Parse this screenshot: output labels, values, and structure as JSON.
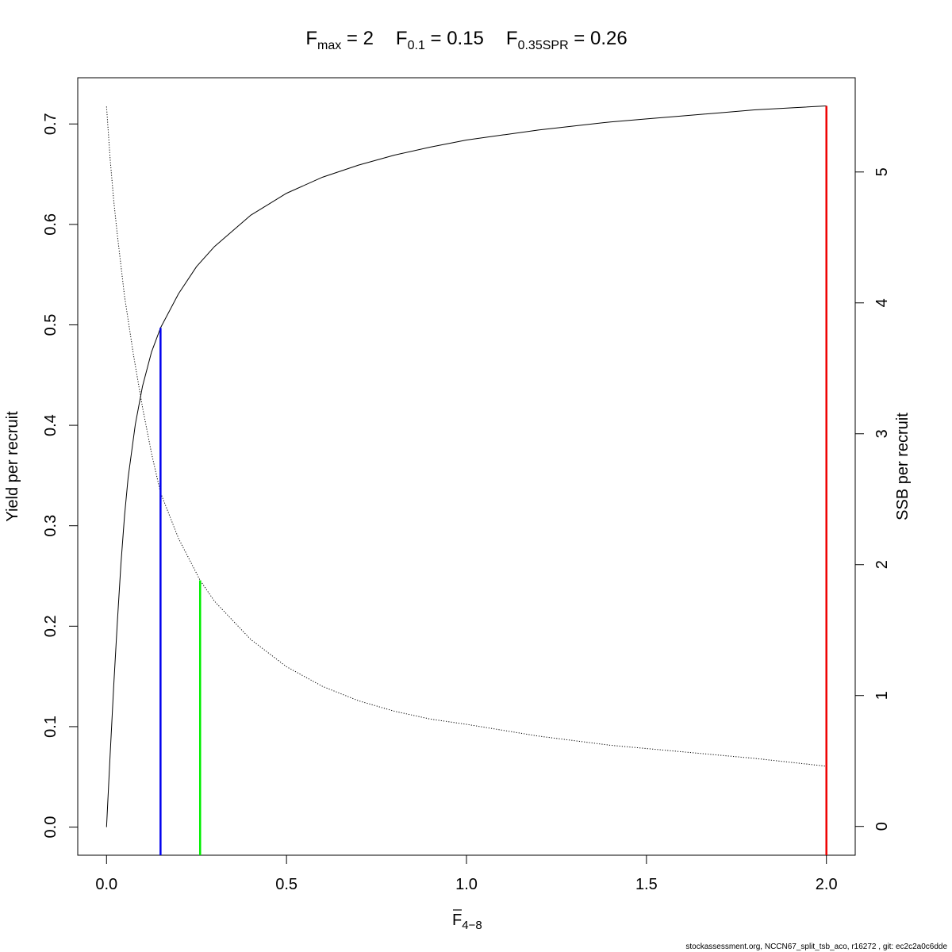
{
  "chart_data": {
    "type": "line",
    "title": {
      "fmax_label": "F",
      "fmax_sub": "max",
      "fmax_value": " = 2",
      "f01_label": "F",
      "f01_sub": "0.1",
      "f01_value": " = 0.15",
      "f035_label": "F",
      "f035_sub": "0.35SPR",
      "f035_value": " = 0.26"
    },
    "xlabel": {
      "text": "F",
      "sub": "4−8",
      "overbar": true
    },
    "ylabel_left": "Yield per recruit",
    "ylabel_right": "SSB per recruit",
    "xlim": [
      -0.08,
      2.08
    ],
    "ylim_left": [
      -0.028,
      0.746
    ],
    "ylim_right": [
      -0.22,
      5.72
    ],
    "x_ticks": [
      0.0,
      0.5,
      1.0,
      1.5,
      2.0
    ],
    "x_tick_labels": [
      "0.0",
      "0.5",
      "1.0",
      "1.5",
      "2.0"
    ],
    "y_left_ticks": [
      0.0,
      0.1,
      0.2,
      0.3,
      0.4,
      0.5,
      0.6,
      0.7
    ],
    "y_left_tick_labels": [
      "0.0",
      "0.1",
      "0.2",
      "0.3",
      "0.4",
      "0.5",
      "0.6",
      "0.7"
    ],
    "y_right_ticks": [
      0,
      1,
      2,
      3,
      4,
      5
    ],
    "y_right_tick_labels": [
      "0",
      "1",
      "2",
      "3",
      "4",
      "5"
    ],
    "series": [
      {
        "axis": "left",
        "style": "solid",
        "color": "#000000",
        "x": [
          0.0,
          0.005,
          0.01,
          0.02,
          0.03,
          0.04,
          0.05,
          0.06,
          0.08,
          0.1,
          0.125,
          0.15,
          0.2,
          0.25,
          0.3,
          0.4,
          0.5,
          0.6,
          0.7,
          0.8,
          0.9,
          1.0,
          1.1,
          1.2,
          1.3,
          1.4,
          1.5,
          1.6,
          1.7,
          1.8,
          1.9,
          2.0
        ],
        "y": [
          0.0,
          0.036,
          0.072,
          0.141,
          0.204,
          0.262,
          0.31,
          0.348,
          0.401,
          0.439,
          0.473,
          0.497,
          0.531,
          0.558,
          0.578,
          0.609,
          0.631,
          0.647,
          0.659,
          0.669,
          0.677,
          0.684,
          0.689,
          0.694,
          0.698,
          0.702,
          0.705,
          0.708,
          0.711,
          0.714,
          0.716,
          0.718
        ]
      },
      {
        "axis": "right",
        "style": "dotted",
        "color": "#000000",
        "x": [
          0.0,
          0.01,
          0.02,
          0.03,
          0.05,
          0.075,
          0.1,
          0.125,
          0.15,
          0.2,
          0.26,
          0.3,
          0.4,
          0.5,
          0.6,
          0.7,
          0.8,
          0.9,
          1.0,
          1.2,
          1.4,
          1.6,
          1.8,
          2.0
        ],
        "y": [
          5.5,
          5.1,
          4.78,
          4.52,
          4.05,
          3.6,
          3.2,
          2.85,
          2.55,
          2.2,
          1.88,
          1.72,
          1.43,
          1.22,
          1.07,
          0.96,
          0.88,
          0.82,
          0.78,
          0.69,
          0.62,
          0.57,
          0.52,
          0.46
        ]
      }
    ],
    "reference_lines": [
      {
        "name": "F0.1",
        "x": 0.15,
        "y_top": 0.497,
        "axis": "left",
        "color": "#0000ee"
      },
      {
        "name": "F0.35SPR",
        "x": 0.26,
        "y_top": 1.88,
        "axis": "right",
        "color": "#00ee00"
      },
      {
        "name": "Fmax",
        "x": 2.0,
        "y_top": 0.718,
        "axis": "left",
        "color": "#ee0000"
      }
    ],
    "grid": false,
    "legend": "none"
  },
  "footer": "stockassessment.org, NCCN67_split_tsb_aco, r16272 , git: ec2c2a0c6dde"
}
